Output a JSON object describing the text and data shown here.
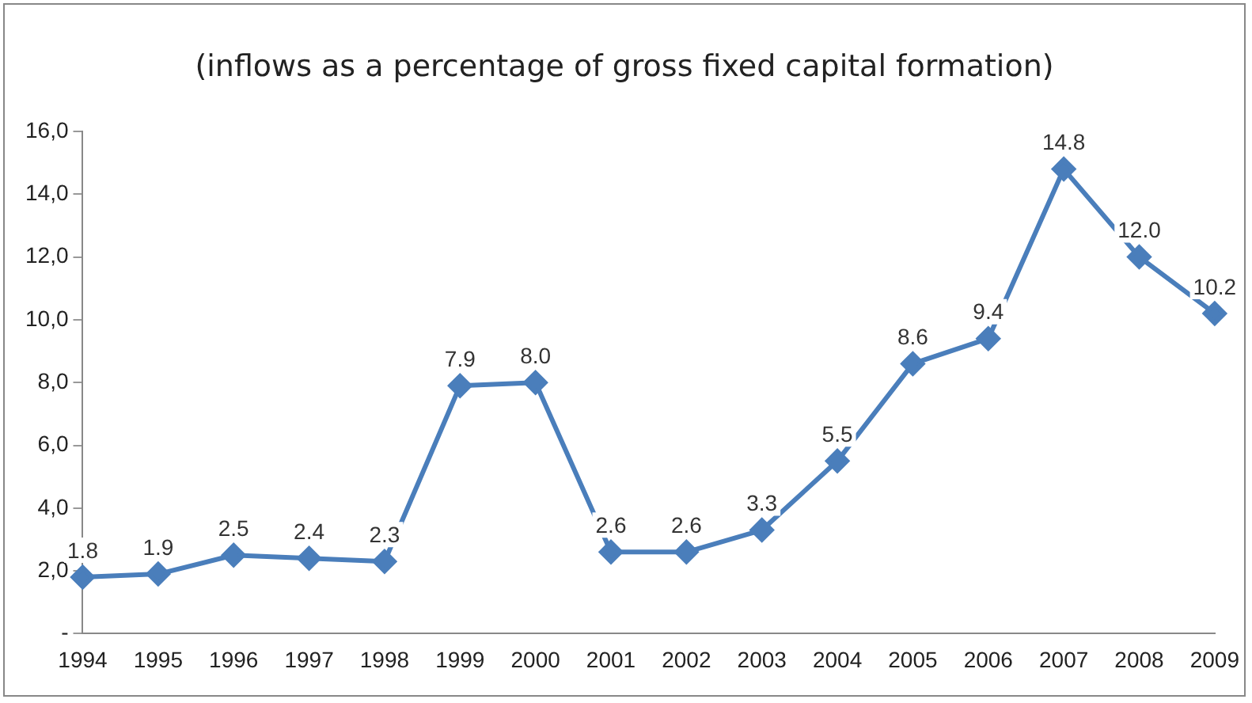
{
  "chart_data": {
    "type": "line",
    "title": "(inflows as a percentage of gross fixed capital formation)",
    "categories": [
      "1994",
      "1995",
      "1996",
      "1997",
      "1998",
      "1999",
      "2000",
      "2001",
      "2002",
      "2003",
      "2004",
      "2005",
      "2006",
      "2007",
      "2008",
      "2009"
    ],
    "values": [
      1.8,
      1.9,
      2.5,
      2.4,
      2.3,
      7.9,
      8.0,
      2.6,
      2.6,
      3.3,
      5.5,
      8.6,
      9.4,
      14.8,
      12.0,
      10.2
    ],
    "value_labels": [
      "1.8",
      "1.9",
      "2.5",
      "2.4",
      "2.3",
      "7.9",
      "8.0",
      "2.6",
      "2.6",
      "3.3",
      "5.5",
      "8.6",
      "9.4",
      "14.8",
      "12.0",
      "10.2"
    ],
    "color": "#4a7ebb",
    "marker": "diamond",
    "line_style": "solid",
    "grid": false,
    "legend": false,
    "ylim": [
      0,
      16
    ],
    "yticks": [
      {
        "value": 0,
        "label": "-"
      },
      {
        "value": 2,
        "label": "2,0"
      },
      {
        "value": 4,
        "label": "4,0"
      },
      {
        "value": 6,
        "label": "6,0"
      },
      {
        "value": 8,
        "label": "8,0"
      },
      {
        "value": 10,
        "label": "10,0"
      },
      {
        "value": 12,
        "label": "12,0"
      },
      {
        "value": 14,
        "label": "14,0"
      },
      {
        "value": 16,
        "label": "16,0"
      }
    ]
  }
}
